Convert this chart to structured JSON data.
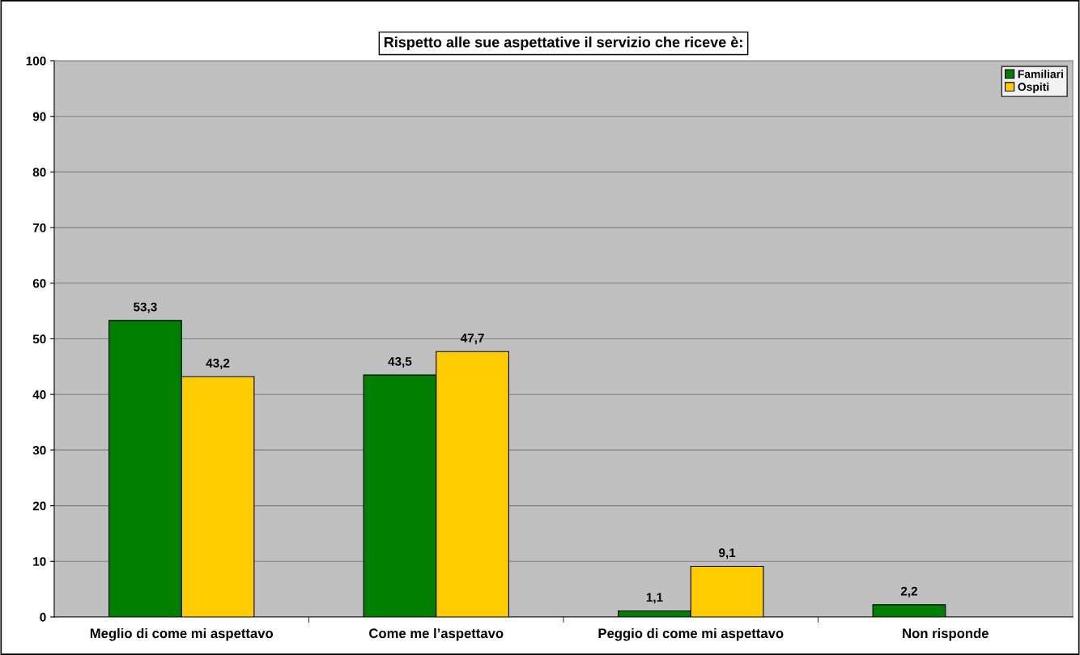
{
  "chart_data": {
    "type": "bar",
    "title": "Rispetto alle sue aspettative il servizio che riceve è:",
    "categories": [
      "Meglio di come mi aspettavo",
      "Come me l’aspettavo",
      "Peggio di come mi aspettavo",
      "Non risponde"
    ],
    "series": [
      {
        "name": "Familiari",
        "color": "#008000",
        "values": [
          53.3,
          43.5,
          1.1,
          2.2
        ],
        "value_labels": [
          "53,3",
          "43,5",
          "1,1",
          "2,2"
        ]
      },
      {
        "name": "Ospiti",
        "color": "#ffcc00",
        "values": [
          43.2,
          47.7,
          9.1,
          null
        ],
        "value_labels": [
          "43,2",
          "47,7",
          "9,1",
          null
        ]
      }
    ],
    "ylim": [
      0,
      100
    ],
    "yticks": [
      0,
      10,
      20,
      30,
      40,
      50,
      60,
      70,
      80,
      90,
      100
    ],
    "grid": "y",
    "legend": "top right"
  }
}
